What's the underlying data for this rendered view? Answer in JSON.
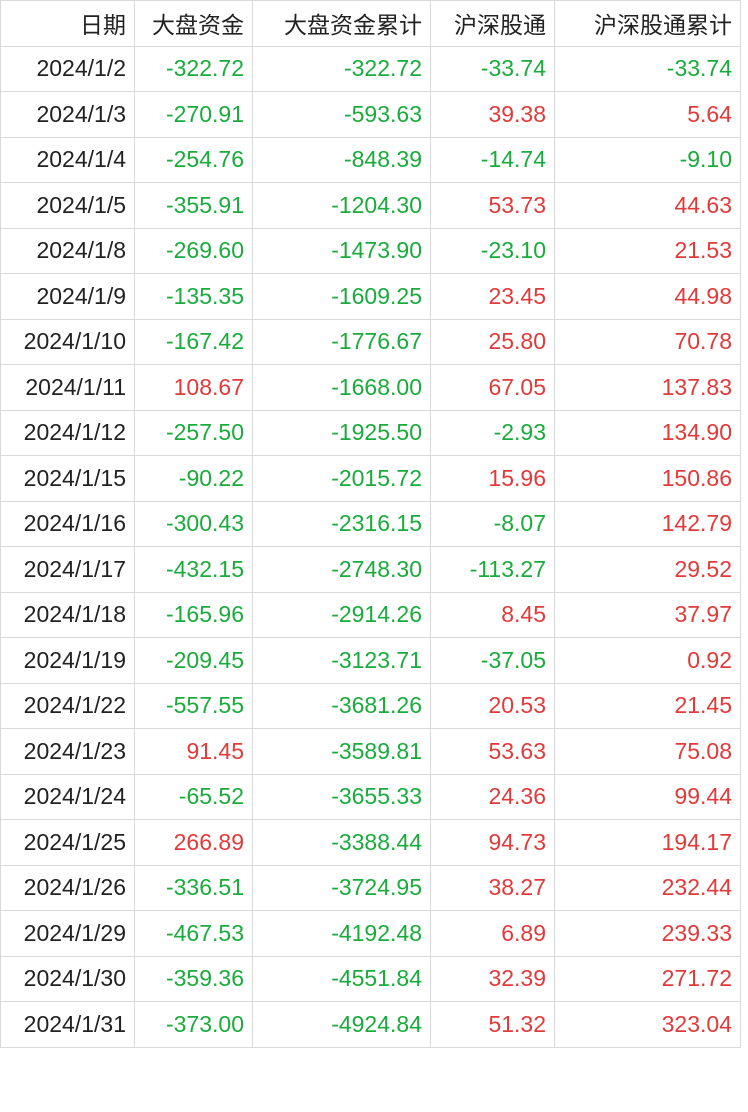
{
  "table": {
    "headers": [
      "日期",
      "大盘资金",
      "大盘资金累计",
      "沪深股通",
      "沪深股通累计"
    ],
    "rows": [
      [
        "2024/1/2",
        "-322.72",
        "-322.72",
        "-33.74",
        "-33.74"
      ],
      [
        "2024/1/3",
        "-270.91",
        "-593.63",
        "39.38",
        "5.64"
      ],
      [
        "2024/1/4",
        "-254.76",
        "-848.39",
        "-14.74",
        "-9.10"
      ],
      [
        "2024/1/5",
        "-355.91",
        "-1204.30",
        "53.73",
        "44.63"
      ],
      [
        "2024/1/8",
        "-269.60",
        "-1473.90",
        "-23.10",
        "21.53"
      ],
      [
        "2024/1/9",
        "-135.35",
        "-1609.25",
        "23.45",
        "44.98"
      ],
      [
        "2024/1/10",
        "-167.42",
        "-1776.67",
        "25.80",
        "70.78"
      ],
      [
        "2024/1/11",
        "108.67",
        "-1668.00",
        "67.05",
        "137.83"
      ],
      [
        "2024/1/12",
        "-257.50",
        "-1925.50",
        "-2.93",
        "134.90"
      ],
      [
        "2024/1/15",
        "-90.22",
        "-2015.72",
        "15.96",
        "150.86"
      ],
      [
        "2024/1/16",
        "-300.43",
        "-2316.15",
        "-8.07",
        "142.79"
      ],
      [
        "2024/1/17",
        "-432.15",
        "-2748.30",
        "-113.27",
        "29.52"
      ],
      [
        "2024/1/18",
        "-165.96",
        "-2914.26",
        "8.45",
        "37.97"
      ],
      [
        "2024/1/19",
        "-209.45",
        "-3123.71",
        "-37.05",
        "0.92"
      ],
      [
        "2024/1/22",
        "-557.55",
        "-3681.26",
        "20.53",
        "21.45"
      ],
      [
        "2024/1/23",
        "91.45",
        "-3589.81",
        "53.63",
        "75.08"
      ],
      [
        "2024/1/24",
        "-65.52",
        "-3655.33",
        "24.36",
        "99.44"
      ],
      [
        "2024/1/25",
        "266.89",
        "-3388.44",
        "94.73",
        "194.17"
      ],
      [
        "2024/1/26",
        "-336.51",
        "-3724.95",
        "38.27",
        "232.44"
      ],
      [
        "2024/1/29",
        "-467.53",
        "-4192.48",
        "6.89",
        "239.33"
      ],
      [
        "2024/1/30",
        "-359.36",
        "-4551.84",
        "32.39",
        "271.72"
      ],
      [
        "2024/1/31",
        "-373.00",
        "-4924.84",
        "51.32",
        "323.04"
      ]
    ]
  },
  "colors": {
    "negative": "#1aab3c",
    "positive": "#e03a3a",
    "text": "#222222",
    "grid": "#d9d9d9"
  }
}
